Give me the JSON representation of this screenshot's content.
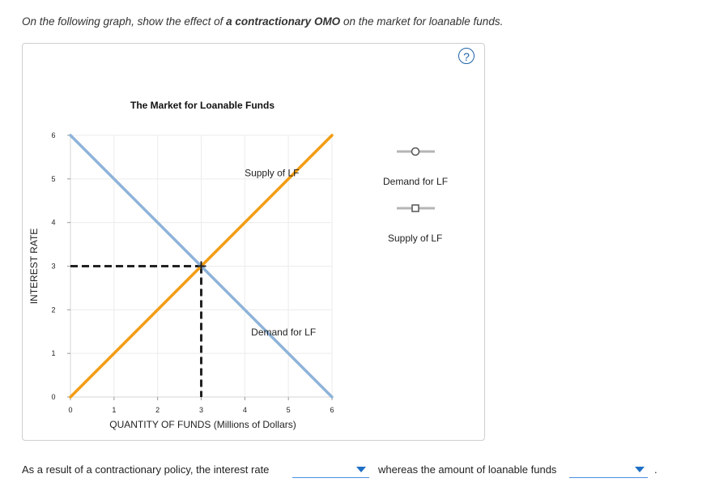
{
  "question": {
    "prefix": "On the following graph, show the effect of ",
    "emphasis": "a contractionary OMO",
    "suffix": " on the market for loanable funds."
  },
  "help_symbol": "?",
  "legend": {
    "demand_label": "Demand for LF",
    "supply_label": "Supply of LF"
  },
  "sentence": {
    "part1": "As a result of a contractionary policy, the interest rate",
    "part2": "whereas the amount of loanable funds",
    "dropdown1_value": "",
    "dropdown2_value": "",
    "end": "."
  },
  "colors": {
    "demand": "#8fb3d9",
    "supply": "#f39c12",
    "equilibrium": "#222222",
    "legend_line": "#b5b5b5"
  },
  "chart_data": {
    "type": "line",
    "title": "The Market for Loanable Funds",
    "xlabel": "QUANTITY OF FUNDS (Millions of Dollars)",
    "ylabel": "INTEREST RATE",
    "xlim": [
      0,
      6
    ],
    "ylim": [
      0,
      6
    ],
    "xticks": [
      "0",
      "1",
      "2",
      "3",
      "4",
      "5",
      "6"
    ],
    "yticks": [
      "0",
      "1",
      "2",
      "3",
      "4",
      "5",
      "6"
    ],
    "grid": true,
    "series": [
      {
        "name": "Demand for LF",
        "x": [
          0,
          6
        ],
        "y": [
          6,
          0
        ]
      },
      {
        "name": "Supply of LF",
        "x": [
          0,
          6
        ],
        "y": [
          0,
          6
        ]
      }
    ],
    "annotations": [
      {
        "text": "Supply of LF",
        "x": 4.85,
        "y": 5.1
      },
      {
        "text": "Demand for LF",
        "x": 5.0,
        "y": 1.45
      }
    ],
    "equilibrium": {
      "x": 3,
      "y": 3
    }
  }
}
